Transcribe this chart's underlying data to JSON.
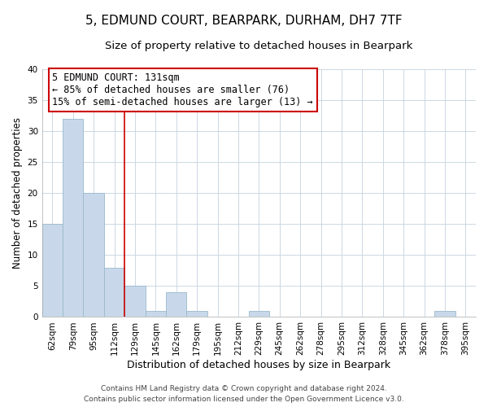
{
  "title": "5, EDMUND COURT, BEARPARK, DURHAM, DH7 7TF",
  "subtitle": "Size of property relative to detached houses in Bearpark",
  "xlabel": "Distribution of detached houses by size in Bearpark",
  "ylabel": "Number of detached properties",
  "bin_labels": [
    "62sqm",
    "79sqm",
    "95sqm",
    "112sqm",
    "129sqm",
    "145sqm",
    "162sqm",
    "179sqm",
    "195sqm",
    "212sqm",
    "229sqm",
    "245sqm",
    "262sqm",
    "278sqm",
    "295sqm",
    "312sqm",
    "328sqm",
    "345sqm",
    "362sqm",
    "378sqm",
    "395sqm"
  ],
  "bar_values": [
    15,
    32,
    20,
    8,
    5,
    1,
    4,
    1,
    0,
    0,
    1,
    0,
    0,
    0,
    0,
    0,
    0,
    0,
    0,
    1,
    0
  ],
  "bar_color": "#c8d8ea",
  "bar_edge_color": "#9ab8cc",
  "vline_x_idx": 3,
  "vline_color": "#cc0000",
  "annotation_line1": "5 EDMUND COURT: 131sqm",
  "annotation_line2": "← 85% of detached houses are smaller (76)",
  "annotation_line3": "15% of semi-detached houses are larger (13) →",
  "annotation_box_color": "#ffffff",
  "annotation_box_edge": "#cc0000",
  "ylim": [
    0,
    40
  ],
  "yticks": [
    0,
    5,
    10,
    15,
    20,
    25,
    30,
    35,
    40
  ],
  "footer_line1": "Contains HM Land Registry data © Crown copyright and database right 2024.",
  "footer_line2": "Contains public sector information licensed under the Open Government Licence v3.0.",
  "bg_color": "#ffffff",
  "grid_color": "#ccd8e4",
  "title_fontsize": 11,
  "subtitle_fontsize": 9.5,
  "xlabel_fontsize": 9,
  "ylabel_fontsize": 8.5,
  "tick_fontsize": 7.5,
  "annotation_fontsize": 8.5,
  "footer_fontsize": 6.5
}
